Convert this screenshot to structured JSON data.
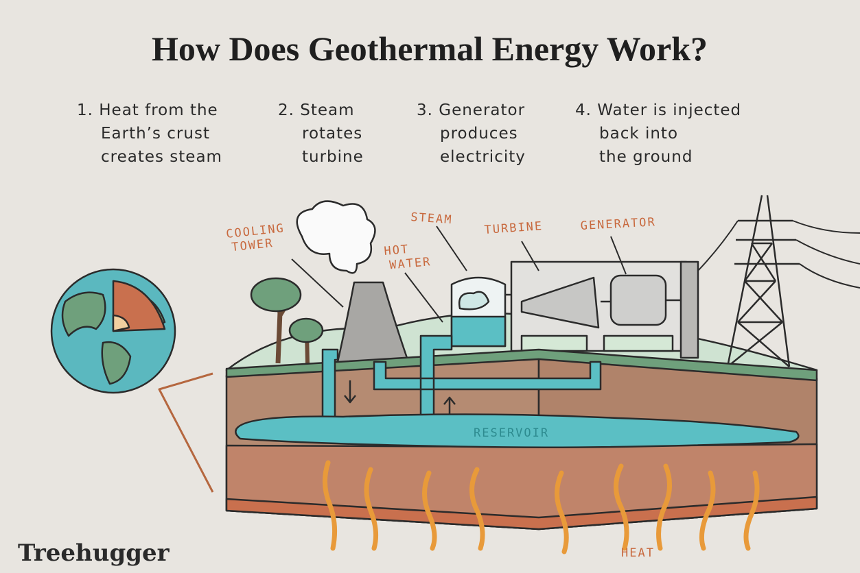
{
  "title": "How Does Geothermal Energy Work?",
  "steps": [
    {
      "lines": [
        "1. Heat from the",
        "Earth’s crust",
        "creates steam"
      ]
    },
    {
      "lines": [
        "2. Steam",
        "rotates",
        "turbine"
      ]
    },
    {
      "lines": [
        "3. Generator",
        "produces",
        "electricity"
      ]
    },
    {
      "lines": [
        "4. Water is injected",
        "back into",
        "the ground"
      ]
    }
  ],
  "labels": [
    {
      "lines": [
        "COOLING",
        "TOWER"
      ]
    },
    {
      "lines": [
        "STEAM"
      ]
    },
    {
      "lines": [
        "HOT",
        "WATER"
      ]
    },
    {
      "lines": [
        "TURBINE"
      ]
    },
    {
      "lines": [
        "GENERATOR"
      ]
    },
    {
      "lines": [
        "RESERVOIR"
      ]
    },
    {
      "lines": [
        "HEAT"
      ]
    }
  ],
  "brand": "Treehugger"
}
